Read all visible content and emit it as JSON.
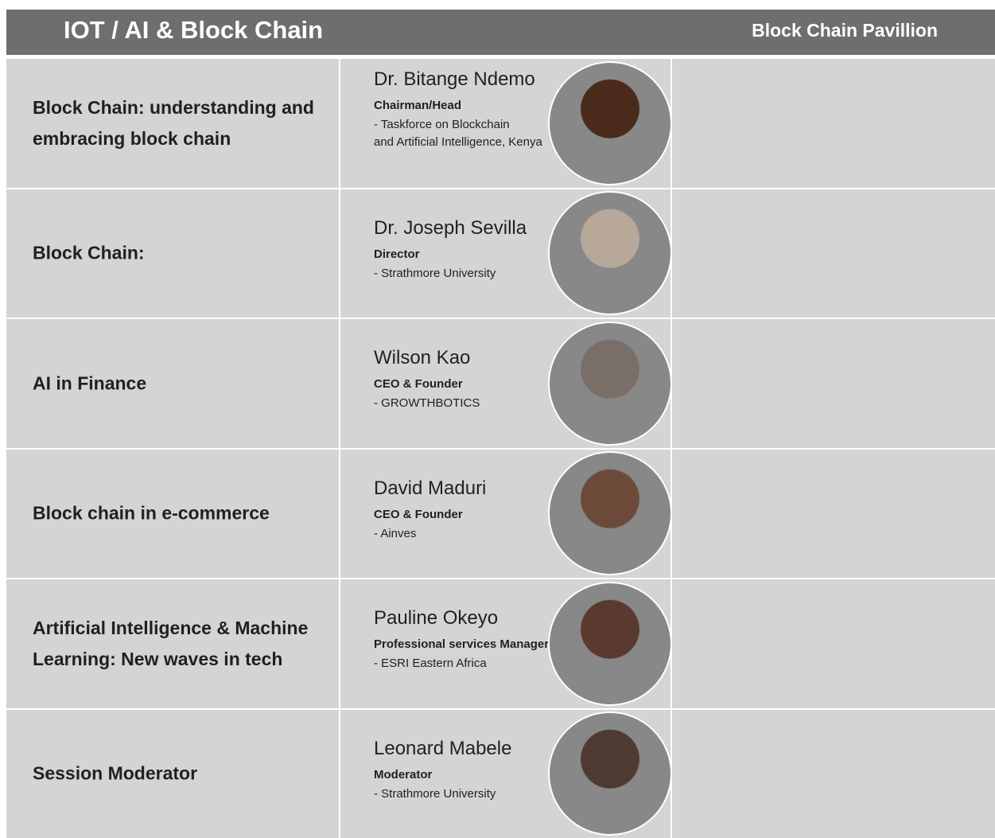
{
  "header": {
    "title": "IOT / AI & Block Chain",
    "pavilion": "Block Chain Pavillion"
  },
  "rows": [
    {
      "topic": "Block Chain: understanding and embracing block chain",
      "speaker": "Dr. Bitange Ndemo",
      "role": "Chairman/Head",
      "org": [
        "- Taskforce on Blockchain",
        "and Artificial Intelligence, Kenya"
      ]
    },
    {
      "topic": "Block Chain:",
      "speaker": "Dr. Joseph Sevilla",
      "role": "Director",
      "org": [
        "- Strathmore University"
      ]
    },
    {
      "topic": "AI in Finance",
      "speaker": "Wilson Kao",
      "role": "CEO & Founder",
      "org": [
        "- GROWTHBOTICS"
      ]
    },
    {
      "topic": "Block chain in e-commerce",
      "speaker": "David Maduri",
      "role": "CEO & Founder",
      "org": [
        "- Ainves"
      ]
    },
    {
      "topic": "Artificial Intelligence & Machine Learning: New waves in tech",
      "speaker": "Pauline Okeyo",
      "role": "Professional services Manager",
      "org": [
        "- ESRI Eastern Africa"
      ]
    },
    {
      "topic": "Session Moderator",
      "speaker": "Leonard Mabele",
      "role": "Moderator",
      "org": [
        "- Strathmore University"
      ]
    }
  ]
}
